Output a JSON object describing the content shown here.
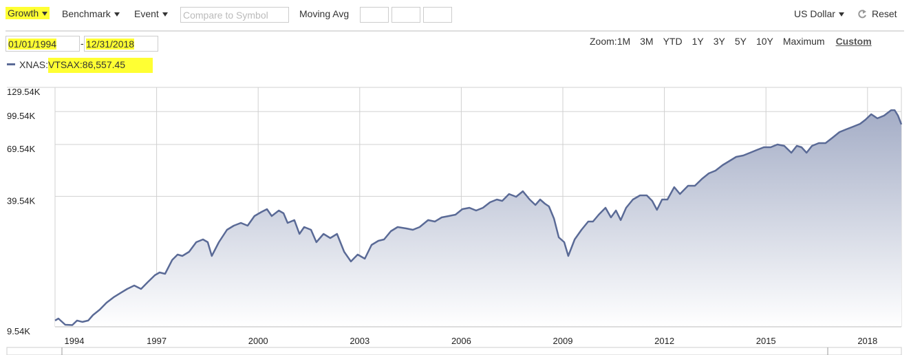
{
  "toolbar": {
    "growth": "Growth",
    "benchmark": "Benchmark",
    "event": "Event",
    "compare_placeholder": "Compare to Symbol",
    "moving_avg": "Moving Avg",
    "currency": "US Dollar",
    "reset": "Reset"
  },
  "dates": {
    "start": "01/01/1994",
    "separator": "-",
    "end": "12/31/2018"
  },
  "zoom": {
    "label": "Zoom:",
    "options": [
      "1M",
      "3M",
      "YTD",
      "1Y",
      "3Y",
      "5Y",
      "10Y",
      "Maximum",
      "Custom"
    ]
  },
  "chart_data": {
    "type": "line",
    "log_scale": true,
    "grid": true,
    "xlim": [
      1994,
      2019
    ],
    "xticks": [
      1994,
      1997,
      2000,
      2003,
      2006,
      2009,
      2012,
      2015,
      2018
    ],
    "ylim": [
      9.54,
      129.54
    ],
    "yticks": [
      {
        "value": 9.54,
        "label": "9.54K"
      },
      {
        "value": 39.54,
        "label": "39.54K"
      },
      {
        "value": 69.54,
        "label": "69.54K"
      },
      {
        "value": 99.54,
        "label": "99.54K"
      },
      {
        "value": 129.54,
        "label": "129.54K"
      }
    ],
    "x": [
      1994.0,
      1994.1,
      1994.3,
      1994.51,
      1994.65,
      1994.81,
      1994.98,
      1995.12,
      1995.32,
      1995.52,
      1995.73,
      1995.93,
      1996.13,
      1996.34,
      1996.54,
      1996.74,
      1996.95,
      1997.09,
      1997.25,
      1997.46,
      1997.62,
      1997.76,
      1997.96,
      1998.17,
      1998.37,
      1998.51,
      1998.63,
      1998.84,
      1999.08,
      1999.28,
      1999.49,
      1999.69,
      1999.89,
      2000.1,
      2000.26,
      2000.4,
      2000.61,
      2000.75,
      2000.87,
      2001.07,
      2001.22,
      2001.36,
      2001.56,
      2001.72,
      2001.93,
      2002.13,
      2002.33,
      2002.54,
      2002.74,
      2002.94,
      2003.15,
      2003.35,
      2003.55,
      2003.72,
      2003.92,
      2004.12,
      2004.37,
      2004.57,
      2004.77,
      2005.02,
      2005.22,
      2005.42,
      2005.63,
      2005.83,
      2006.03,
      2006.24,
      2006.44,
      2006.64,
      2006.85,
      2007.05,
      2007.21,
      2007.41,
      2007.62,
      2007.82,
      2008.02,
      2008.19,
      2008.33,
      2008.47,
      2008.59,
      2008.74,
      2008.88,
      2009.04,
      2009.16,
      2009.35,
      2009.55,
      2009.75,
      2009.89,
      2010.06,
      2010.26,
      2010.42,
      2010.57,
      2010.71,
      2010.87,
      2011.07,
      2011.28,
      2011.48,
      2011.64,
      2011.78,
      2011.93,
      2012.09,
      2012.29,
      2012.46,
      2012.7,
      2012.9,
      2013.11,
      2013.31,
      2013.51,
      2013.72,
      2013.92,
      2014.12,
      2014.33,
      2014.53,
      2014.73,
      2014.94,
      2015.14,
      2015.34,
      2015.54,
      2015.75,
      2015.91,
      2016.05,
      2016.2,
      2016.36,
      2016.56,
      2016.76,
      2016.97,
      2017.17,
      2017.37,
      2017.58,
      2017.78,
      2017.94,
      2018.11,
      2018.29,
      2018.49,
      2018.7,
      2018.8,
      2018.9,
      2019.0
    ],
    "series": [
      {
        "name": "XNAS:VTSAX:86,557.45",
        "color": "#5a6a96",
        "values": [
          10.21,
          10.44,
          9.76,
          9.72,
          10.21,
          10.06,
          10.21,
          10.84,
          11.5,
          12.4,
          13.16,
          13.78,
          14.41,
          14.96,
          14.41,
          15.53,
          16.74,
          17.25,
          16.99,
          19.75,
          20.96,
          20.65,
          21.6,
          23.99,
          24.72,
          23.99,
          20.65,
          23.99,
          27.45,
          28.71,
          29.58,
          28.71,
          31.89,
          33.35,
          34.38,
          31.89,
          33.86,
          32.86,
          29.58,
          30.5,
          26.25,
          28.29,
          27.45,
          23.99,
          26.25,
          25.09,
          26.25,
          21.6,
          19.45,
          20.96,
          20.04,
          23.28,
          24.35,
          24.72,
          27.05,
          28.29,
          27.87,
          27.45,
          28.29,
          30.5,
          30.03,
          31.41,
          31.89,
          32.37,
          34.38,
          34.9,
          33.86,
          34.9,
          37.05,
          38.18,
          37.61,
          40.54,
          39.34,
          41.78,
          38.18,
          35.97,
          38.18,
          36.5,
          35.42,
          30.96,
          25.28,
          23.99,
          20.65,
          24.72,
          27.45,
          30.03,
          30.03,
          32.37,
          34.9,
          31.41,
          33.86,
          30.5,
          34.9,
          38.18,
          39.93,
          39.93,
          37.61,
          34.12,
          38.18,
          38.18,
          43.69,
          40.54,
          44.35,
          44.35,
          47.8,
          50.75,
          52.3,
          55.53,
          58.08,
          60.75,
          61.67,
          63.56,
          65.48,
          67.48,
          67.48,
          69.53,
          68.5,
          63.56,
          68.5,
          67.48,
          63.56,
          68.5,
          70.57,
          70.57,
          74.94,
          79.57,
          82.0,
          84.52,
          87.08,
          91.07,
          96.73,
          92.44,
          95.25,
          101.1,
          101.1,
          95.25,
          86.56
        ]
      }
    ]
  }
}
